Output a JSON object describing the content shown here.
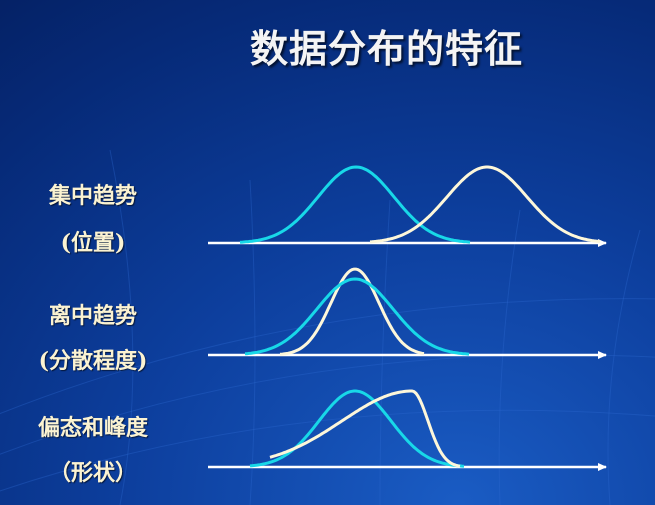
{
  "slide": {
    "title": "数据分布的特征"
  },
  "rows": [
    {
      "name": "集中趋势",
      "sub": "(位置)"
    },
    {
      "name": "离中趋势",
      "sub": "(分散程度)"
    },
    {
      "name": "偏态和峰度",
      "sub": "（形状）"
    }
  ],
  "colors": {
    "cyan_curve": "#18d8e8",
    "cream_curve": "#fdf7da",
    "axis": "#ffffff",
    "label_text": "#fbf3d2"
  }
}
